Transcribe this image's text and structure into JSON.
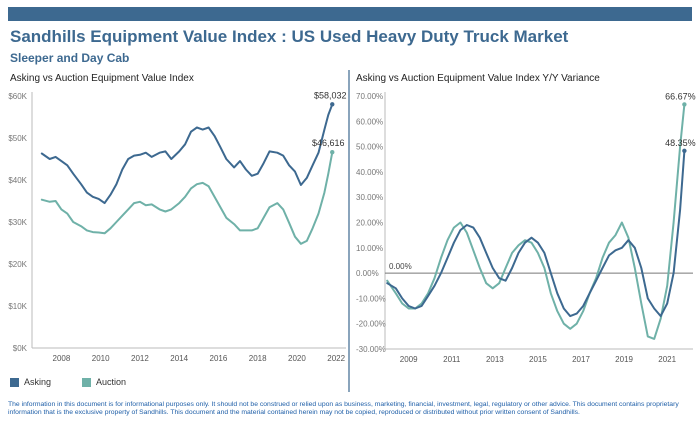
{
  "header": {
    "title": "Sandhills Equipment Value Index : US Used Heavy Duty Truck Market",
    "subtitle": "Sleeper and Day Cab"
  },
  "colors": {
    "asking": "#3d6990",
    "auction": "#6fb1a8",
    "topbar": "#3d6990",
    "zero_line": "#777777"
  },
  "legend": [
    {
      "label": "Asking",
      "color": "#3d6990"
    },
    {
      "label": "Auction",
      "color": "#6fb1a8"
    }
  ],
  "disclaimer": "The information in this document is for informational purposes only.  It should not be construed or relied upon as business, marketing, financial, investment, legal, regulatory or other advice. This document contains proprietary information that is the exclusive property of Sandhills. This document and the material contained herein may not be copied, reproduced or distributed without prior written consent of Sandhills.",
  "chart_data": [
    {
      "type": "line",
      "title": "Asking vs Auction Equipment Value Index",
      "xlim": [
        2006.5,
        2022.5
      ],
      "ylim": [
        0,
        60000
      ],
      "x_ticks": [
        2008,
        2010,
        2012,
        2014,
        2016,
        2018,
        2020,
        2022
      ],
      "x_tick_labels": [
        "2008",
        "2010",
        "2012",
        "2014",
        "2016",
        "2018",
        "2020",
        "2022"
      ],
      "y_ticks": [
        0,
        10000,
        20000,
        30000,
        40000,
        50000,
        60000
      ],
      "y_tick_labels": [
        "$0K",
        "$10K",
        "$20K",
        "$30K",
        "$40K",
        "$50K",
        "$60K"
      ],
      "grid": false,
      "series": [
        {
          "name": "Asking",
          "color": "#3d6990",
          "x": [
            2007.0,
            2007.4,
            2007.7,
            2008.0,
            2008.3,
            2008.6,
            2009.0,
            2009.3,
            2009.6,
            2009.9,
            2010.2,
            2010.5,
            2010.8,
            2011.1,
            2011.4,
            2011.7,
            2012.0,
            2012.3,
            2012.6,
            2013.0,
            2013.3,
            2013.6,
            2014.0,
            2014.3,
            2014.6,
            2014.9,
            2015.2,
            2015.5,
            2015.8,
            2016.1,
            2016.4,
            2016.8,
            2017.1,
            2017.4,
            2017.7,
            2018.0,
            2018.3,
            2018.6,
            2019.0,
            2019.3,
            2019.6,
            2019.9,
            2020.2,
            2020.5,
            2020.8,
            2021.1,
            2021.4,
            2021.6,
            2021.8
          ],
          "values": [
            46300,
            45000,
            45500,
            44500,
            43500,
            41500,
            39000,
            37000,
            36000,
            35500,
            34500,
            36500,
            39000,
            42500,
            45000,
            45800,
            46000,
            46500,
            45500,
            46500,
            46800,
            45000,
            46800,
            48500,
            51500,
            52500,
            52000,
            52500,
            50500,
            47800,
            45000,
            43000,
            44500,
            42500,
            41000,
            41500,
            44000,
            46800,
            46500,
            45800,
            43500,
            42000,
            38800,
            40500,
            43500,
            46500,
            52000,
            55500,
            58032
          ]
        },
        {
          "name": "Auction",
          "color": "#6fb1a8",
          "x": [
            2007.0,
            2007.4,
            2007.7,
            2008.0,
            2008.3,
            2008.6,
            2009.0,
            2009.3,
            2009.6,
            2009.9,
            2010.2,
            2010.5,
            2010.8,
            2011.1,
            2011.4,
            2011.7,
            2012.0,
            2012.3,
            2012.6,
            2013.0,
            2013.3,
            2013.6,
            2014.0,
            2014.3,
            2014.6,
            2014.9,
            2015.2,
            2015.5,
            2015.8,
            2016.1,
            2016.4,
            2016.8,
            2017.1,
            2017.4,
            2017.7,
            2018.0,
            2018.3,
            2018.6,
            2019.0,
            2019.3,
            2019.6,
            2019.9,
            2020.2,
            2020.5,
            2020.8,
            2021.1,
            2021.4,
            2021.6,
            2021.8
          ],
          "values": [
            35300,
            34800,
            35000,
            33000,
            32000,
            30000,
            29000,
            28000,
            27600,
            27500,
            27300,
            28500,
            30000,
            31500,
            33000,
            34500,
            34800,
            34000,
            34200,
            33000,
            32500,
            33000,
            34500,
            36000,
            38000,
            39000,
            39300,
            38500,
            36000,
            33500,
            31000,
            29500,
            28000,
            28000,
            28000,
            28500,
            31000,
            33500,
            34500,
            33000,
            29800,
            26500,
            24800,
            25500,
            28500,
            32000,
            37000,
            41500,
            46616
          ]
        }
      ],
      "annotations": [
        {
          "series": "Asking",
          "x": 2021.8,
          "y": 58032,
          "text": "$58,032"
        },
        {
          "series": "Auction",
          "x": 2021.8,
          "y": 46616,
          "text": "$46,616"
        }
      ]
    },
    {
      "type": "line",
      "title": "Asking vs Auction Equipment Value Index Y/Y Variance",
      "xlim": [
        2007.9,
        2022.2
      ],
      "ylim": [
        -30,
        70
      ],
      "x_ticks": [
        2009,
        2011,
        2013,
        2015,
        2017,
        2019,
        2021
      ],
      "x_tick_labels": [
        "2009",
        "2011",
        "2013",
        "2015",
        "2017",
        "2019",
        "2021"
      ],
      "y_ticks": [
        -30,
        -20,
        -10,
        0,
        10,
        20,
        30,
        40,
        50,
        60,
        70
      ],
      "y_tick_labels": [
        "-30.00%",
        "-20.00%",
        "-10.00%",
        "0.00%",
        "10.00%",
        "20.00%",
        "30.00%",
        "40.00%",
        "50.00%",
        "60.00%",
        "70.00%"
      ],
      "grid": false,
      "reference_line": {
        "y": 0,
        "text": "0.00%"
      },
      "series": [
        {
          "name": "Asking",
          "color": "#3d6990",
          "x": [
            2008.0,
            2008.4,
            2008.7,
            2009.0,
            2009.3,
            2009.6,
            2009.9,
            2010.2,
            2010.5,
            2010.8,
            2011.1,
            2011.4,
            2011.7,
            2012.0,
            2012.3,
            2012.6,
            2012.9,
            2013.2,
            2013.5,
            2013.8,
            2014.1,
            2014.4,
            2014.7,
            2015.0,
            2015.3,
            2015.6,
            2015.9,
            2016.2,
            2016.5,
            2016.8,
            2017.1,
            2017.4,
            2017.7,
            2018.0,
            2018.3,
            2018.6,
            2018.9,
            2019.2,
            2019.5,
            2019.8,
            2020.1,
            2020.4,
            2020.7,
            2021.0,
            2021.3,
            2021.6,
            2021.8
          ],
          "values": [
            -4,
            -6,
            -10,
            -13,
            -14,
            -13,
            -9,
            -5,
            0,
            6,
            12,
            17,
            19,
            18,
            14,
            8,
            2,
            -2,
            -3,
            2,
            8,
            12,
            14,
            12,
            8,
            0,
            -8,
            -14,
            -17,
            -16,
            -13,
            -8,
            -3,
            2,
            7,
            9,
            10,
            13,
            10,
            2,
            -10,
            -14,
            -17,
            -12,
            0,
            25,
            48.35
          ]
        },
        {
          "name": "Auction",
          "color": "#6fb1a8",
          "x": [
            2008.0,
            2008.4,
            2008.7,
            2009.0,
            2009.3,
            2009.6,
            2009.9,
            2010.2,
            2010.5,
            2010.8,
            2011.1,
            2011.4,
            2011.7,
            2012.0,
            2012.3,
            2012.6,
            2012.9,
            2013.2,
            2013.5,
            2013.8,
            2014.1,
            2014.4,
            2014.7,
            2015.0,
            2015.3,
            2015.6,
            2015.9,
            2016.2,
            2016.5,
            2016.8,
            2017.1,
            2017.4,
            2017.7,
            2018.0,
            2018.3,
            2018.6,
            2018.9,
            2019.2,
            2019.5,
            2019.8,
            2020.1,
            2020.4,
            2020.7,
            2021.0,
            2021.3,
            2021.6,
            2021.8
          ],
          "values": [
            -3,
            -8,
            -12,
            -14,
            -14,
            -12,
            -8,
            -2,
            6,
            13,
            18,
            20,
            16,
            9,
            2,
            -4,
            -6,
            -4,
            2,
            8,
            11,
            13,
            12,
            8,
            2,
            -8,
            -15,
            -20,
            -22,
            -20,
            -15,
            -8,
            -2,
            6,
            12,
            15,
            20,
            14,
            2,
            -12,
            -25,
            -26,
            -18,
            -5,
            20,
            50,
            66.67
          ]
        }
      ],
      "annotations": [
        {
          "series": "Auction",
          "x": 2021.8,
          "y": 66.67,
          "text": "66.67%"
        },
        {
          "series": "Asking",
          "x": 2021.8,
          "y": 48.35,
          "text": "48.35%"
        }
      ]
    }
  ]
}
